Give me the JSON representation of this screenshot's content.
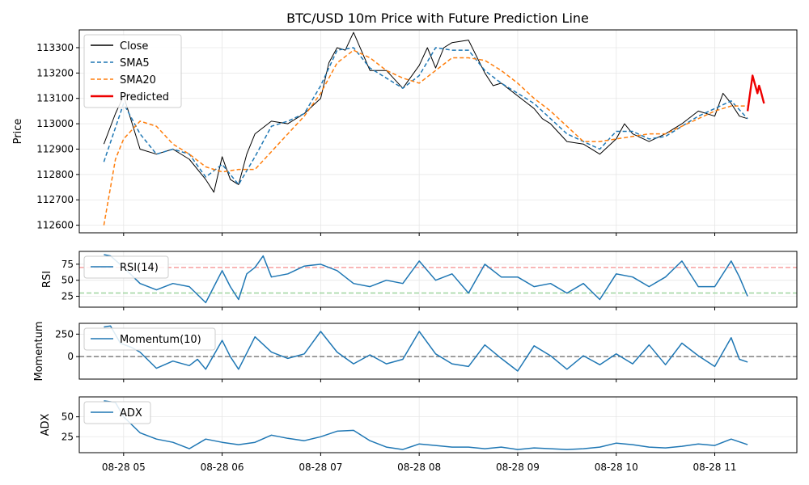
{
  "chart_data": {
    "type": "line",
    "title": "BTC/USD 10m Price with Future Prediction Line",
    "x_ticks": [
      "08-28 05",
      "08-28 06",
      "08-28 07",
      "08-28 08",
      "08-28 09",
      "08-28 10",
      "08-28 11"
    ],
    "x_range": [
      "08-28 04:33",
      "08-28 11:50"
    ],
    "grid": true,
    "panels": [
      {
        "id": "price",
        "ylabel": "Price",
        "ylim": [
          112570,
          113370
        ],
        "yticks": [
          "112600",
          "112700",
          "112800",
          "112900",
          "113000",
          "113100",
          "113200",
          "113300"
        ],
        "legend_position": "top-left",
        "series": [
          {
            "name": "Close",
            "style": "solid",
            "color": "#000000",
            "x": [
              "04:48",
              "04:55",
              "05:00",
              "05:10",
              "05:20",
              "05:30",
              "05:40",
              "05:50",
              "05:55",
              "06:00",
              "06:05",
              "06:10",
              "06:15",
              "06:20",
              "06:30",
              "06:40",
              "06:50",
              "07:00",
              "07:05",
              "07:10",
              "07:15",
              "07:20",
              "07:30",
              "07:40",
              "07:50",
              "08:00",
              "08:05",
              "08:10",
              "08:15",
              "08:20",
              "08:30",
              "08:40",
              "08:45",
              "08:50",
              "09:00",
              "09:10",
              "09:15",
              "09:20",
              "09:30",
              "09:40",
              "09:50",
              "10:00",
              "10:05",
              "10:10",
              "10:20",
              "10:30",
              "10:40",
              "10:50",
              "11:00",
              "11:05",
              "11:10",
              "11:15",
              "11:20"
            ],
            "values": [
              112920,
              113040,
              113110,
              112900,
              112880,
              112900,
              112860,
              112780,
              112730,
              112870,
              112780,
              112760,
              112880,
              112960,
              113010,
              113000,
              113040,
              113100,
              113240,
              113300,
              113290,
              113360,
              113210,
              113210,
              113140,
              113230,
              113300,
              113220,
              113300,
              113320,
              113330,
              113200,
              113150,
              113160,
              113110,
              113060,
              113020,
              113000,
              112930,
              112920,
              112880,
              112940,
              113000,
              112960,
              112930,
              112960,
              113000,
              113050,
              113030,
              113120,
              113080,
              113030,
              113020
            ]
          },
          {
            "name": "SMA5",
            "style": "dashed",
            "color": "#1f77b4",
            "x": [
              "04:48",
              "05:00",
              "05:10",
              "05:20",
              "05:30",
              "05:40",
              "05:50",
              "06:00",
              "06:10",
              "06:20",
              "06:30",
              "06:40",
              "06:50",
              "07:00",
              "07:10",
              "07:20",
              "07:30",
              "07:40",
              "07:50",
              "08:00",
              "08:10",
              "08:20",
              "08:30",
              "08:40",
              "08:50",
              "09:00",
              "09:10",
              "09:20",
              "09:30",
              "09:40",
              "09:50",
              "10:00",
              "10:10",
              "10:20",
              "10:30",
              "10:40",
              "10:50",
              "11:00",
              "11:10",
              "11:20"
            ],
            "values": [
              112850,
              113080,
              112960,
              112880,
              112900,
              112880,
              112790,
              112840,
              112760,
              112870,
              112990,
              113010,
              113040,
              113150,
              113290,
              113300,
              113220,
              113180,
              113140,
              113190,
              113300,
              113290,
              113290,
              113210,
              113160,
              113120,
              113080,
              113020,
              112960,
              112930,
              112900,
              112970,
              112970,
              112940,
              112950,
              112990,
              113030,
              113060,
              113090,
              113020
            ]
          },
          {
            "name": "SMA20",
            "style": "dashed",
            "color": "#ff7f0e",
            "x": [
              "04:48",
              "04:55",
              "05:00",
              "05:10",
              "05:20",
              "05:30",
              "05:40",
              "05:50",
              "06:00",
              "06:10",
              "06:20",
              "06:30",
              "06:40",
              "06:50",
              "07:00",
              "07:10",
              "07:20",
              "07:30",
              "07:40",
              "07:50",
              "08:00",
              "08:10",
              "08:20",
              "08:30",
              "08:40",
              "08:50",
              "09:00",
              "09:10",
              "09:20",
              "09:30",
              "09:40",
              "09:50",
              "10:00",
              "10:10",
              "10:20",
              "10:30",
              "10:40",
              "10:50",
              "11:00",
              "11:10",
              "11:20"
            ],
            "values": [
              112600,
              112860,
              112940,
              113010,
              112990,
              112920,
              112880,
              112830,
              112810,
              112820,
              112820,
              112890,
              112960,
              113030,
              113120,
              113240,
              113290,
              113260,
              113210,
              113180,
              113160,
              113210,
              113260,
              113260,
              113250,
              113210,
              113160,
              113100,
              113050,
              112990,
              112930,
              112930,
              112940,
              112950,
              112960,
              112960,
              112990,
              113020,
              113050,
              113070,
              113070
            ]
          },
          {
            "name": "Predicted",
            "style": "solid",
            "color": "#ee0000",
            "x": [
              "11:20",
              "11:23",
              "11:26",
              "11:27",
              "11:28",
              "11:30"
            ],
            "values": [
              113050,
              113190,
              113120,
              113150,
              113130,
              113080
            ]
          }
        ]
      },
      {
        "id": "rsi",
        "ylabel": "RSI",
        "ylim": [
          8,
          95
        ],
        "yticks": [
          "25",
          "50",
          "75"
        ],
        "hlines": [
          {
            "y": 70,
            "color": "#f7a0a0"
          },
          {
            "y": 30,
            "color": "#9fd49f"
          }
        ],
        "legend_position": "top-left",
        "series": [
          {
            "name": "RSI(14)",
            "style": "solid",
            "color": "#1f77b4",
            "x": [
              "04:48",
              "04:52",
              "05:00",
              "05:10",
              "05:20",
              "05:30",
              "05:40",
              "05:50",
              "05:55",
              "06:00",
              "06:05",
              "06:10",
              "06:15",
              "06:20",
              "06:25",
              "06:30",
              "06:40",
              "06:50",
              "07:00",
              "07:10",
              "07:20",
              "07:30",
              "07:40",
              "07:50",
              "08:00",
              "08:10",
              "08:20",
              "08:30",
              "08:40",
              "08:50",
              "09:00",
              "09:10",
              "09:20",
              "09:30",
              "09:40",
              "09:50",
              "10:00",
              "10:10",
              "10:20",
              "10:30",
              "10:40",
              "10:50",
              "11:00",
              "11:10",
              "11:15",
              "11:20"
            ],
            "values": [
              90,
              88,
              70,
              45,
              35,
              45,
              40,
              15,
              40,
              65,
              40,
              20,
              60,
              70,
              88,
              55,
              60,
              72,
              75,
              65,
              45,
              40,
              50,
              45,
              80,
              50,
              60,
              30,
              75,
              55,
              55,
              40,
              45,
              30,
              45,
              20,
              60,
              55,
              40,
              55,
              80,
              40,
              40,
              80,
              55,
              25
            ]
          }
        ]
      },
      {
        "id": "momentum",
        "ylabel": "Momentum",
        "ylim": [
          -250,
          370
        ],
        "yticks": [
          "0",
          "250"
        ],
        "hlines": [
          {
            "y": 0,
            "color": "#808080"
          }
        ],
        "legend_position": "top-left",
        "series": [
          {
            "name": "Momentum(10)",
            "style": "solid",
            "color": "#1f77b4",
            "x": [
              "04:48",
              "04:52",
              "04:58",
              "05:05",
              "05:10",
              "05:20",
              "05:30",
              "05:40",
              "05:45",
              "05:50",
              "06:00",
              "06:05",
              "06:10",
              "06:20",
              "06:30",
              "06:40",
              "06:50",
              "07:00",
              "07:10",
              "07:20",
              "07:30",
              "07:40",
              "07:50",
              "08:00",
              "08:10",
              "08:20",
              "08:30",
              "08:40",
              "08:50",
              "09:00",
              "09:10",
              "09:20",
              "09:30",
              "09:40",
              "09:50",
              "10:00",
              "10:10",
              "10:20",
              "10:30",
              "10:40",
              "10:50",
              "11:00",
              "11:10",
              "11:15",
              "11:20"
            ],
            "values": [
              330,
              340,
              150,
              100,
              50,
              -130,
              -50,
              -100,
              -30,
              -140,
              180,
              0,
              -140,
              220,
              50,
              -20,
              30,
              280,
              50,
              -80,
              20,
              -80,
              -30,
              280,
              30,
              -80,
              -110,
              130,
              -20,
              -160,
              120,
              10,
              -140,
              10,
              -90,
              30,
              -80,
              130,
              -90,
              150,
              10,
              -110,
              210,
              -30,
              -60
            ]
          }
        ]
      },
      {
        "id": "adx",
        "ylabel": "ADX",
        "ylim": [
          5,
          75
        ],
        "yticks": [
          "25",
          "50"
        ],
        "legend_position": "top-left",
        "series": [
          {
            "name": "ADX",
            "style": "solid",
            "color": "#1f77b4",
            "x": [
              "04:48",
              "04:55",
              "05:00",
              "05:10",
              "05:20",
              "05:30",
              "05:40",
              "05:50",
              "06:00",
              "06:10",
              "06:20",
              "06:30",
              "06:40",
              "06:50",
              "07:00",
              "07:10",
              "07:20",
              "07:30",
              "07:40",
              "07:50",
              "08:00",
              "08:10",
              "08:20",
              "08:30",
              "08:40",
              "08:50",
              "09:00",
              "09:10",
              "09:20",
              "09:30",
              "09:40",
              "09:50",
              "10:00",
              "10:10",
              "10:20",
              "10:30",
              "10:40",
              "10:50",
              "11:00",
              "11:10",
              "11:20"
            ],
            "values": [
              70,
              68,
              50,
              30,
              22,
              18,
              10,
              22,
              18,
              15,
              18,
              27,
              23,
              20,
              25,
              32,
              33,
              20,
              12,
              9,
              16,
              14,
              12,
              12,
              10,
              12,
              9,
              11,
              10,
              9,
              10,
              12,
              17,
              15,
              12,
              11,
              13,
              16,
              14,
              22,
              15
            ]
          }
        ]
      }
    ]
  }
}
